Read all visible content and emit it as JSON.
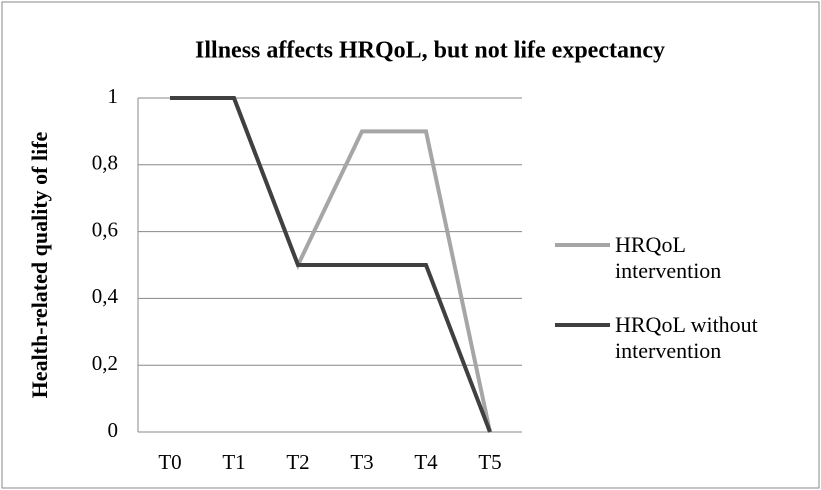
{
  "chart_data": {
    "type": "line",
    "title": "Illness affects HRQoL, but not life expectancy",
    "y_label": "Health-related quality of life",
    "categories": [
      "T0",
      "T1",
      "T2",
      "T3",
      "T4",
      "T5"
    ],
    "series": [
      {
        "name": "HRQoL intervention",
        "color": "#a6a6a6",
        "values": [
          1,
          1,
          0.5,
          0.9,
          0.9,
          0
        ]
      },
      {
        "name": "HRQoL without intervention",
        "color": "#404040",
        "values": [
          1,
          1,
          0.5,
          0.5,
          0.5,
          0
        ]
      }
    ],
    "ylim": [
      0,
      1
    ],
    "yticks": [
      0,
      {
        "value": 0.2,
        "label": "0,2"
      },
      {
        "value": 0.4,
        "label": "0,4"
      },
      {
        "value": 0.6,
        "label": "0,6"
      },
      {
        "value": 0.8,
        "label": "0,8"
      },
      1
    ],
    "grid": true,
    "legend": "right"
  }
}
